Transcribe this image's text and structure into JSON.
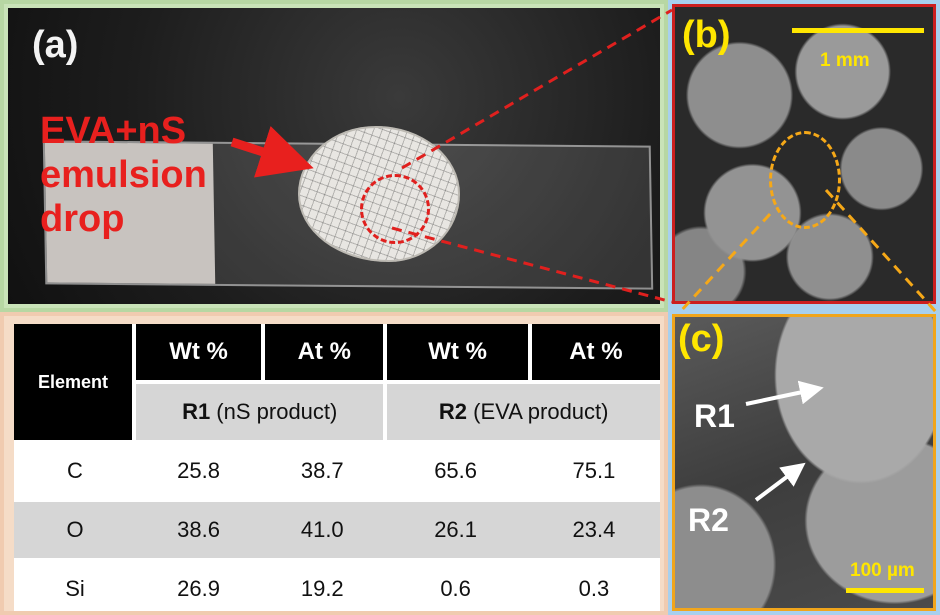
{
  "panel_a": {
    "label": "(a)",
    "annotation_lines": [
      "EVA+nS",
      "emulsion",
      "drop"
    ]
  },
  "panel_b": {
    "label": "(b)",
    "scale_bar": "1 mm"
  },
  "panel_c": {
    "label": "(c)",
    "region_1": "R1",
    "region_2": "R2",
    "scale_bar": "100 µm"
  },
  "table": {
    "element_header": "Element",
    "columns": [
      "Wt %",
      "At %",
      "Wt %",
      "At %"
    ],
    "groups": [
      {
        "bold": "R1",
        "rest": " (nS product)"
      },
      {
        "bold": "R2",
        "rest": " (EVA product)"
      }
    ],
    "rows": [
      {
        "element": "C",
        "values": [
          "25.8",
          "38.7",
          "65.6",
          "75.1"
        ]
      },
      {
        "element": "O",
        "values": [
          "38.6",
          "41.0",
          "26.1",
          "23.4"
        ]
      },
      {
        "element": "Si",
        "values": [
          "26.9",
          "19.2",
          "0.6",
          "0.3"
        ]
      }
    ]
  },
  "colors": {
    "annotation_red": "#e8201e",
    "zoom_circle_b": "#f5a818",
    "scale_yellow": "#ffe600"
  }
}
